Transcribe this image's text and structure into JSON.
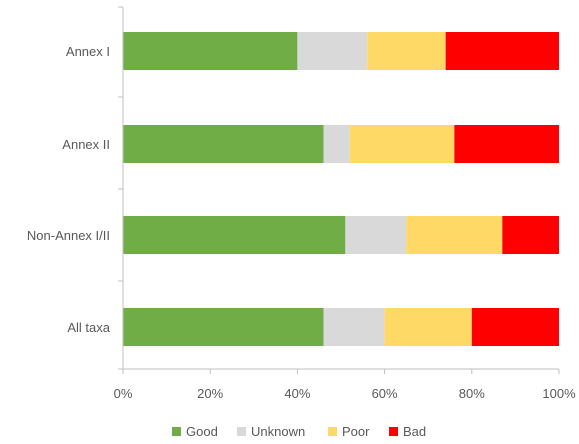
{
  "chart_data": {
    "type": "bar",
    "orientation": "horizontal",
    "stacked": "100%",
    "title": "",
    "xlabel": "",
    "ylabel": "",
    "xlim": [
      0,
      100
    ],
    "x_ticks": [
      "0%",
      "20%",
      "40%",
      "60%",
      "80%",
      "100%"
    ],
    "grid": false,
    "legend_position": "bottom",
    "categories": [
      "Annex I",
      "Annex II",
      "Non-Annex I/II",
      "All taxa"
    ],
    "series": [
      {
        "name": "Good",
        "color": "#70ad47",
        "values": [
          40,
          46,
          51,
          46
        ]
      },
      {
        "name": "Unknown",
        "color": "#d9d9d9",
        "values": [
          16,
          6,
          14,
          14
        ]
      },
      {
        "name": "Poor",
        "color": "#ffd966",
        "values": [
          18,
          24,
          22,
          20
        ]
      },
      {
        "name": "Bad",
        "color": "#ff0000",
        "values": [
          26,
          24,
          13,
          20
        ]
      }
    ]
  }
}
